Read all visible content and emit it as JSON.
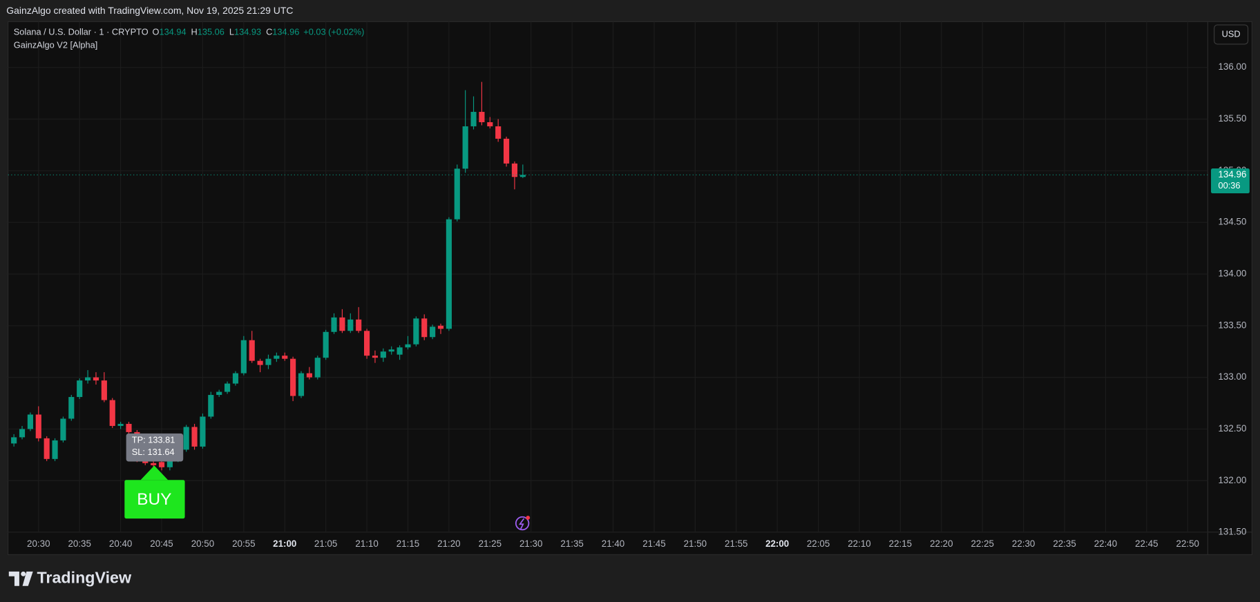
{
  "header": {
    "watermark": "GainzAlgo created with TradingView.com, Nov 19, 2025 21:29 UTC",
    "symbol": "Solana / U.S. Dollar · 1 · CRYPTO",
    "ohlc": [
      {
        "key": "O",
        "value": "134.94"
      },
      {
        "key": "H",
        "value": "135.06"
      },
      {
        "key": "L",
        "value": "134.93"
      },
      {
        "key": "C",
        "value": "134.96"
      }
    ],
    "change": "+0.03 (+0.02%)",
    "indicator": "GainzAlgo V2 [Alpha]"
  },
  "price_scale": {
    "currency": "USD",
    "last_price": "134.96",
    "countdown": "00:36"
  },
  "signal": {
    "tp": "TP: 133.81",
    "sl": "SL: 131.64",
    "label": "BUY"
  },
  "footer": {
    "brand": "TradingView"
  },
  "chart_data": {
    "type": "candlestick",
    "up_color": "#089981",
    "down_color": "#f23645",
    "grid": true,
    "x": [
      "20:27",
      "20:28",
      "20:29",
      "20:30",
      "20:31",
      "20:32",
      "20:33",
      "20:34",
      "20:35",
      "20:36",
      "20:37",
      "20:38",
      "20:39",
      "20:40",
      "20:41",
      "20:42",
      "20:43",
      "20:44",
      "20:45",
      "20:46",
      "20:47",
      "20:48",
      "20:49",
      "20:50",
      "20:51",
      "20:52",
      "20:53",
      "20:54",
      "20:55",
      "20:56",
      "20:57",
      "20:58",
      "20:59",
      "21:00",
      "21:01",
      "21:02",
      "21:03",
      "21:04",
      "21:05",
      "21:06",
      "21:07",
      "21:08",
      "21:09",
      "21:10",
      "21:11",
      "21:12",
      "21:13",
      "21:14",
      "21:15",
      "21:16",
      "21:17",
      "21:18",
      "21:19",
      "21:20",
      "21:21",
      "21:22",
      "21:23",
      "21:24",
      "21:25",
      "21:26",
      "21:27",
      "21:28",
      "21:29"
    ],
    "open": [
      132.36,
      132.42,
      132.5,
      132.64,
      132.41,
      132.21,
      132.39,
      132.6,
      132.81,
      132.97,
      133.0,
      132.97,
      132.78,
      132.53,
      132.55,
      132.47,
      132.2,
      132.17,
      132.18,
      132.13,
      132.2,
      132.3,
      132.52,
      132.33,
      132.62,
      132.83,
      132.86,
      132.94,
      133.04,
      133.36,
      133.16,
      133.12,
      133.18,
      133.21,
      133.18,
      132.82,
      133.04,
      133.0,
      133.19,
      133.44,
      133.58,
      133.45,
      133.56,
      133.45,
      133.21,
      133.19,
      133.25,
      133.22,
      133.29,
      133.32,
      133.57,
      133.39,
      133.5,
      133.47,
      134.53,
      135.02,
      135.43,
      135.57,
      135.47,
      135.43,
      135.31,
      135.07,
      134.94
    ],
    "high": [
      132.45,
      132.53,
      132.66,
      132.72,
      132.43,
      132.41,
      132.62,
      132.83,
      132.99,
      133.07,
      133.05,
      133.05,
      132.8,
      132.57,
      132.57,
      132.49,
      132.22,
      132.19,
      132.2,
      132.22,
      132.32,
      132.54,
      132.55,
      132.65,
      132.86,
      132.88,
      132.96,
      133.06,
      133.4,
      133.45,
      133.18,
      133.22,
      133.24,
      133.24,
      133.2,
      133.06,
      133.1,
      133.21,
      133.46,
      133.62,
      133.66,
      133.62,
      133.68,
      133.47,
      133.26,
      133.28,
      133.3,
      133.31,
      133.4,
      133.59,
      133.61,
      133.51,
      133.52,
      134.55,
      135.06,
      135.78,
      135.72,
      135.86,
      135.52,
      135.5,
      135.33,
      135.09,
      135.06
    ],
    "low": [
      132.33,
      132.4,
      132.48,
      132.38,
      132.19,
      132.19,
      132.37,
      132.58,
      132.79,
      132.94,
      132.93,
      132.76,
      132.51,
      132.5,
      132.44,
      132.18,
      132.15,
      132.13,
      132.1,
      132.1,
      132.18,
      132.28,
      132.3,
      132.31,
      132.6,
      132.81,
      132.84,
      132.92,
      133.02,
      133.14,
      133.05,
      133.08,
      133.15,
      133.16,
      132.77,
      132.8,
      132.98,
      132.98,
      133.17,
      133.42,
      133.43,
      133.43,
      133.43,
      133.18,
      133.14,
      133.15,
      133.22,
      133.17,
      133.27,
      133.3,
      133.36,
      133.37,
      133.42,
      133.45,
      134.51,
      134.98,
      135.4,
      135.44,
      135.41,
      135.28,
      135.04,
      134.82,
      134.93
    ],
    "close": [
      132.42,
      132.5,
      132.64,
      132.41,
      132.21,
      132.39,
      132.6,
      132.81,
      132.97,
      133.0,
      132.97,
      132.78,
      132.53,
      132.55,
      132.47,
      132.2,
      132.17,
      132.15,
      132.13,
      132.2,
      132.3,
      132.52,
      132.33,
      132.62,
      132.83,
      132.86,
      132.94,
      133.04,
      133.36,
      133.16,
      133.12,
      133.18,
      133.21,
      133.18,
      132.82,
      133.04,
      133.0,
      133.19,
      133.44,
      133.58,
      133.45,
      133.56,
      133.45,
      133.21,
      133.19,
      133.25,
      133.27,
      133.29,
      133.32,
      133.57,
      133.39,
      133.49,
      133.47,
      134.53,
      135.02,
      135.43,
      135.57,
      135.47,
      135.43,
      135.31,
      135.07,
      134.94,
      134.96
    ],
    "xlim": [
      "20:26",
      "22:52"
    ],
    "xticks": [
      "20:30",
      "20:35",
      "20:40",
      "20:45",
      "20:50",
      "20:55",
      "21:00",
      "21:05",
      "21:10",
      "21:15",
      "21:20",
      "21:25",
      "21:30",
      "21:35",
      "21:40",
      "21:45",
      "21:50",
      "21:55",
      "22:00",
      "22:05",
      "22:10",
      "22:15",
      "22:20",
      "22:25",
      "22:30",
      "22:35",
      "22:40",
      "22:45",
      "22:50"
    ],
    "ylim": [
      131.5,
      136.45
    ],
    "yticks": [
      {
        "value": 131.5,
        "label": "131.50"
      },
      {
        "value": 132,
        "label": "132.00"
      },
      {
        "value": 132.5,
        "label": "132.50"
      },
      {
        "value": 133,
        "label": "133.00"
      },
      {
        "value": 133.5,
        "label": "133.50"
      },
      {
        "value": 134,
        "label": "134.00"
      },
      {
        "value": 134.5,
        "label": "134.50"
      },
      {
        "value": 135,
        "label": "135.00"
      },
      {
        "value": 135.5,
        "label": "135.50"
      },
      {
        "value": 136,
        "label": "136.00"
      }
    ]
  }
}
